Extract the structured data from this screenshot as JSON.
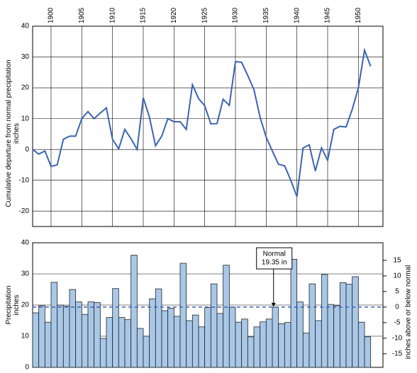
{
  "chart_data": [
    {
      "type": "line",
      "ylabel": [
        "Cumulative departure from normal precipitation",
        "inches"
      ],
      "xlim": [
        1897,
        1954
      ],
      "xticks": [
        1900,
        1905,
        1910,
        1915,
        1920,
        1925,
        1930,
        1935,
        1940,
        1945,
        1950
      ],
      "ylim": [
        -25,
        40
      ],
      "yticks": [
        -20,
        -10,
        0,
        10,
        20,
        30,
        40
      ],
      "grid": true,
      "x": [
        1897,
        1898,
        1899,
        1900,
        1901,
        1902,
        1903,
        1904,
        1905,
        1906,
        1907,
        1908,
        1909,
        1910,
        1911,
        1912,
        1913,
        1914,
        1915,
        1916,
        1917,
        1918,
        1919,
        1920,
        1921,
        1922,
        1923,
        1924,
        1925,
        1926,
        1927,
        1928,
        1929,
        1930,
        1931,
        1932,
        1933,
        1934,
        1935,
        1936,
        1937,
        1938,
        1939,
        1940,
        1941,
        1942,
        1943,
        1944,
        1945,
        1946,
        1947,
        1948,
        1949,
        1950,
        1951,
        1952
      ],
      "series": [
        {
          "color": "#3a64b0",
          "values": [
            0,
            -1.5,
            -0.5,
            -5.5,
            -5,
            3.3,
            4.3,
            4.3,
            10,
            12.3,
            10,
            11.8,
            13.5,
            3.3,
            0.2,
            6.5,
            3.5,
            0,
            16.8,
            10.5,
            1.2,
            4.3,
            10,
            9,
            9,
            6.5,
            21,
            16.5,
            14.2,
            8.3,
            8.4,
            16.3,
            14.3,
            28.5,
            28.3,
            24,
            19.5,
            10.5,
            4,
            -0.5,
            -4.8,
            -5.3,
            -10,
            -15.3,
            0.5,
            1.5,
            -7,
            0.5,
            -3.5,
            6.5,
            7.5,
            7.3,
            13,
            20,
            32.2,
            27
          ]
        }
      ]
    },
    {
      "type": "bar",
      "ylabel": [
        "Precipitation",
        "inches"
      ],
      "y2label": "inches above or below normal",
      "xlim": [
        1897,
        1954
      ],
      "ylim": [
        0,
        40
      ],
      "yticks": [
        0,
        10,
        20,
        30,
        40
      ],
      "grid": true,
      "y2lim": [
        -19.35,
        20.65
      ],
      "y2ticks": [
        -15,
        -10,
        -5,
        0,
        5,
        10,
        15
      ],
      "normal": {
        "value": 19.35,
        "title": "Normal",
        "label": "19.35 in",
        "color": "#3a64b0"
      },
      "x": [
        1898,
        1899,
        1900,
        1901,
        1902,
        1903,
        1904,
        1905,
        1906,
        1907,
        1908,
        1909,
        1910,
        1911,
        1912,
        1913,
        1914,
        1915,
        1916,
        1917,
        1918,
        1919,
        1920,
        1921,
        1922,
        1923,
        1924,
        1925,
        1926,
        1927,
        1928,
        1929,
        1930,
        1931,
        1932,
        1933,
        1934,
        1935,
        1936,
        1937,
        1938,
        1939,
        1940,
        1941,
        1942,
        1943,
        1944,
        1945,
        1946,
        1947,
        1948,
        1949,
        1950,
        1951,
        1952
      ],
      "color": "#a9c8e8",
      "values": [
        17.5,
        19.8,
        14.5,
        27.3,
        20,
        19.6,
        25,
        21,
        17,
        21,
        20.8,
        9.3,
        16,
        25.3,
        16,
        15.3,
        36,
        12.5,
        10,
        22,
        25.2,
        18.2,
        19,
        16.4,
        33.4,
        15,
        16.8,
        13,
        19.2,
        26.8,
        17.3,
        32.8,
        19.3,
        14.5,
        15.5,
        9.8,
        13,
        14.6,
        15.5,
        19.3,
        14,
        14.4,
        34.7,
        21,
        11,
        26.8,
        15,
        29.8,
        20.2,
        19.8,
        27.2,
        26.7,
        29.1,
        14.5,
        9.8
      ]
    }
  ]
}
